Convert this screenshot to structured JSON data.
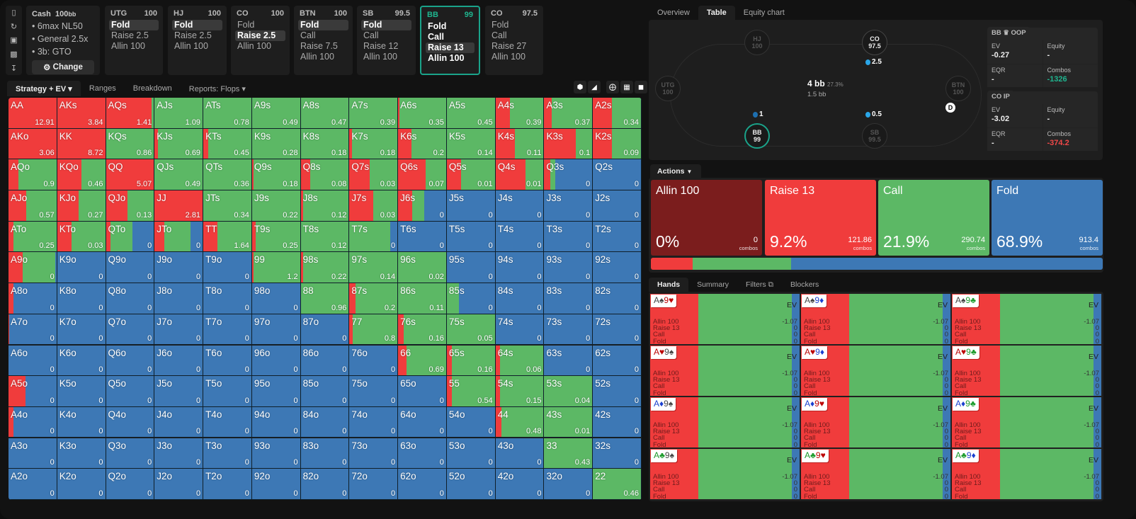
{
  "colors": {
    "allin": "#7b1d1d",
    "raise": "#f03c3c",
    "call": "#5cb865",
    "fold": "#3d78b5",
    "accent": "#1aa38a"
  },
  "sidebar_icons": [
    "bookmark-icon",
    "reset-icon",
    "save-icon",
    "gamepad-icon",
    "fit-height-icon"
  ],
  "info": {
    "title": "Cash",
    "stack": "100",
    "stack_unit": "bb",
    "items": [
      "6max NL50",
      "General 2.5x",
      "3b: GTO"
    ],
    "change_label": "Change"
  },
  "positions": [
    {
      "name": "UTG",
      "stack": "100",
      "actions": [
        "Fold",
        "Raise 2.5",
        "Allin 100"
      ],
      "selected": 0
    },
    {
      "name": "HJ",
      "stack": "100",
      "actions": [
        "Fold",
        "Raise 2.5",
        "Allin 100"
      ],
      "selected": 0
    },
    {
      "name": "CO",
      "stack": "100",
      "actions": [
        "Fold",
        "Raise 2.5",
        "Allin 100"
      ],
      "selected": 1
    },
    {
      "name": "BTN",
      "stack": "100",
      "actions": [
        "Fold",
        "Call",
        "Raise 7.5",
        "Allin 100"
      ],
      "selected": 0
    },
    {
      "name": "SB",
      "stack": "99.5",
      "actions": [
        "Fold",
        "Call",
        "Raise 12",
        "Allin 100"
      ],
      "selected": 0
    },
    {
      "name": "BB",
      "stack": "99",
      "actions": [
        "Fold",
        "Call",
        "Raise 13",
        "Allin 100"
      ],
      "selected": 2,
      "current": true
    },
    {
      "name": "CO",
      "stack": "97.5",
      "actions": [
        "Fold",
        "Call",
        "Raise 27",
        "Allin 100"
      ],
      "selected": -1
    }
  ],
  "left_tabs": [
    {
      "label": "Strategy + EV",
      "active": true,
      "dropdown": true
    },
    {
      "label": "Ranges"
    },
    {
      "label": "Breakdown"
    },
    {
      "label": "Reports: Flops",
      "dropdown": true
    }
  ],
  "view_tools": [
    "cube-icon",
    "contrast-icon",
    "crosshair-grid-icon",
    "grid-icon",
    "square-icon"
  ],
  "grid": [
    [
      [
        "AA",
        "12.91",
        1,
        0
      ],
      [
        "AKs",
        "3.84",
        1,
        0
      ],
      [
        "AQs",
        "1.41",
        0.95,
        0.05
      ],
      [
        "AJs",
        "1.09",
        0,
        1
      ],
      [
        "ATs",
        "0.78",
        0,
        1
      ],
      [
        "A9s",
        "0.49",
        0,
        1
      ],
      [
        "A8s",
        "0.47",
        0,
        1
      ],
      [
        "A7s",
        "0.39",
        0,
        1
      ],
      [
        "A6s",
        "0.35",
        0.03,
        0.97
      ],
      [
        "A5s",
        "0.45",
        0,
        1
      ],
      [
        "A4s",
        "0.39",
        0.3,
        0.7
      ],
      [
        "A3s",
        "0.37",
        0.15,
        0.85
      ],
      [
        "A2s",
        "0.34",
        0.4,
        0.6
      ]
    ],
    [
      [
        "AKo",
        "3.06",
        1,
        0
      ],
      [
        "KK",
        "8.72",
        1,
        0
      ],
      [
        "KQs",
        "0.86",
        0,
        1
      ],
      [
        "KJs",
        "0.69",
        0.07,
        0.93
      ],
      [
        "KTs",
        "0.45",
        0.1,
        0.9
      ],
      [
        "K9s",
        "0.28",
        0,
        1
      ],
      [
        "K8s",
        "0.18",
        0,
        1
      ],
      [
        "K7s",
        "0.18",
        0.05,
        0.95
      ],
      [
        "K6s",
        "0.2",
        0.28,
        0.72
      ],
      [
        "K5s",
        "0.14",
        0,
        1
      ],
      [
        "K4s",
        "0.11",
        0.4,
        0.6
      ],
      [
        "K3s",
        "0.1",
        0.65,
        0.35
      ],
      [
        "K2s",
        "0.09",
        0.4,
        0.6
      ]
    ],
    [
      [
        "AQo",
        "0.9",
        0.2,
        0.8
      ],
      [
        "KQo",
        "0.46",
        0.5,
        0.5
      ],
      [
        "QQ",
        "5.07",
        1,
        0
      ],
      [
        "QJs",
        "0.49",
        0,
        1
      ],
      [
        "QTs",
        "0.36",
        0,
        1
      ],
      [
        "Q9s",
        "0.18",
        0.03,
        0.97
      ],
      [
        "Q8s",
        "0.08",
        0.2,
        0.8
      ],
      [
        "Q7s",
        "0.03",
        0.42,
        0.58
      ],
      [
        "Q6s",
        "0.07",
        0.58,
        0.42
      ],
      [
        "Q5s",
        "0.01",
        0.3,
        0.7
      ],
      [
        "Q4s",
        "0.01",
        0.62,
        0.38
      ],
      [
        "Q3s",
        "0",
        0.13,
        0.1
      ],
      [
        "Q2s",
        "0",
        0,
        0
      ]
    ],
    [
      [
        "AJo",
        "0.57",
        0.37,
        0.63
      ],
      [
        "KJo",
        "0.27",
        0.45,
        0.55
      ],
      [
        "QJo",
        "0.13",
        0.45,
        0.55
      ],
      [
        "JJ",
        "2.81",
        1,
        0
      ],
      [
        "JTs",
        "0.34",
        0,
        1
      ],
      [
        "J9s",
        "0.22",
        0,
        1
      ],
      [
        "J8s",
        "0.12",
        0.05,
        0.95
      ],
      [
        "J7s",
        "0.03",
        0.5,
        0.5
      ],
      [
        "J6s",
        "0",
        0.3,
        0.25
      ],
      [
        "J5s",
        "0",
        0,
        0
      ],
      [
        "J4s",
        "0",
        0,
        0
      ],
      [
        "J3s",
        "0",
        0,
        0
      ],
      [
        "J2s",
        "0",
        0,
        0
      ]
    ],
    [
      [
        "ATo",
        "0.25",
        0.1,
        0.9
      ],
      [
        "KTo",
        "0.03",
        0.3,
        0.7
      ],
      [
        "QTo",
        "0",
        0.1,
        0.45
      ],
      [
        "JTo",
        "0",
        0.2,
        0.55
      ],
      [
        "TT",
        "1.64",
        0.3,
        0.7
      ],
      [
        "T9s",
        "0.25",
        0.08,
        0.92
      ],
      [
        "T8s",
        "0.12",
        0,
        1
      ],
      [
        "T7s",
        "0",
        0,
        0.85
      ],
      [
        "T6s",
        "0",
        0,
        0
      ],
      [
        "T5s",
        "0",
        0,
        0
      ],
      [
        "T4s",
        "0",
        0,
        0
      ],
      [
        "T3s",
        "0",
        0,
        0
      ],
      [
        "T2s",
        "0",
        0,
        0
      ]
    ],
    [
      [
        "A9o",
        "0",
        0.3,
        0.68
      ],
      [
        "K9o",
        "0",
        0,
        0
      ],
      [
        "Q9o",
        "0",
        0,
        0
      ],
      [
        "J9o",
        "0",
        0,
        0
      ],
      [
        "T9o",
        "0",
        0,
        0
      ],
      [
        "99",
        "1.2",
        0.03,
        0.97
      ],
      [
        "98s",
        "0.22",
        0.05,
        0.95
      ],
      [
        "97s",
        "0.14",
        0,
        1
      ],
      [
        "96s",
        "0.02",
        0,
        1
      ],
      [
        "95s",
        "0",
        0,
        0
      ],
      [
        "94s",
        "0",
        0,
        0
      ],
      [
        "93s",
        "0",
        0,
        0
      ],
      [
        "92s",
        "0",
        0,
        0
      ]
    ],
    [
      [
        "A8o",
        "0",
        0.1,
        0
      ],
      [
        "K8o",
        "0",
        0,
        0
      ],
      [
        "Q8o",
        "0",
        0,
        0
      ],
      [
        "J8o",
        "0",
        0,
        0
      ],
      [
        "T8o",
        "0",
        0,
        0
      ],
      [
        "98o",
        "0",
        0,
        0
      ],
      [
        "88",
        "0.96",
        0,
        1
      ],
      [
        "87s",
        "0.2",
        0.12,
        0.88
      ],
      [
        "86s",
        "0.11",
        0,
        1
      ],
      [
        "85s",
        "0",
        0,
        0.25
      ],
      [
        "84s",
        "0",
        0,
        0
      ],
      [
        "83s",
        "0",
        0,
        0
      ],
      [
        "82s",
        "0",
        0,
        0
      ]
    ],
    [
      [
        "A7o",
        "0",
        0.02,
        0
      ],
      [
        "K7o",
        "0",
        0,
        0
      ],
      [
        "Q7o",
        "0",
        0,
        0
      ],
      [
        "J7o",
        "0",
        0,
        0
      ],
      [
        "T7o",
        "0",
        0,
        0
      ],
      [
        "97o",
        "0",
        0,
        0
      ],
      [
        "87o",
        "0",
        0,
        0
      ],
      [
        "77",
        "0.8",
        0.07,
        0.93
      ],
      [
        "76s",
        "0.16",
        0.12,
        0.88
      ],
      [
        "75s",
        "0.05",
        0,
        1
      ],
      [
        "74s",
        "0",
        0,
        0
      ],
      [
        "73s",
        "0",
        0,
        0
      ],
      [
        "72s",
        "0",
        0,
        0
      ]
    ],
    [
      [
        "A6o",
        "0",
        0,
        0
      ],
      [
        "K6o",
        "0",
        0,
        0
      ],
      [
        "Q6o",
        "0",
        0,
        0
      ],
      [
        "J6o",
        "0",
        0,
        0
      ],
      [
        "T6o",
        "0",
        0,
        0
      ],
      [
        "96o",
        "0",
        0,
        0
      ],
      [
        "86o",
        "0",
        0,
        0
      ],
      [
        "76o",
        "0",
        0,
        0
      ],
      [
        "66",
        "0.69",
        0.17,
        0.83
      ],
      [
        "65s",
        "0.16",
        0.1,
        0.9
      ],
      [
        "64s",
        "0.06",
        0.1,
        0.9
      ],
      [
        "63s",
        "0",
        0,
        0
      ],
      [
        "62s",
        "0",
        0,
        0
      ]
    ],
    [
      [
        "A5o",
        "0",
        0.35,
        0
      ],
      [
        "K5o",
        "0",
        0,
        0
      ],
      [
        "Q5o",
        "0",
        0,
        0
      ],
      [
        "J5o",
        "0",
        0,
        0
      ],
      [
        "T5o",
        "0",
        0,
        0
      ],
      [
        "95o",
        "0",
        0,
        0
      ],
      [
        "85o",
        "0",
        0,
        0
      ],
      [
        "75o",
        "0",
        0,
        0
      ],
      [
        "65o",
        "0",
        0,
        0
      ],
      [
        "55",
        "0.54",
        0.1,
        0.9
      ],
      [
        "54s",
        "0.15",
        0.1,
        0.9
      ],
      [
        "53s",
        "0.04",
        0,
        1
      ],
      [
        "52s",
        "0",
        0,
        0
      ]
    ],
    [
      [
        "A4o",
        "0",
        0.1,
        0
      ],
      [
        "K4o",
        "0",
        0,
        0
      ],
      [
        "Q4o",
        "0",
        0,
        0
      ],
      [
        "J4o",
        "0",
        0,
        0
      ],
      [
        "T4o",
        "0",
        0,
        0
      ],
      [
        "94o",
        "0",
        0,
        0
      ],
      [
        "84o",
        "0",
        0,
        0
      ],
      [
        "74o",
        "0",
        0,
        0
      ],
      [
        "64o",
        "0",
        0,
        0
      ],
      [
        "54o",
        "0",
        0,
        0
      ],
      [
        "44",
        "0.48",
        0.12,
        0.88
      ],
      [
        "43s",
        "0.01",
        0,
        1
      ],
      [
        "42s",
        "0",
        0,
        0
      ]
    ],
    [
      [
        "A3o",
        "0",
        0,
        0
      ],
      [
        "K3o",
        "0",
        0,
        0
      ],
      [
        "Q3o",
        "0",
        0,
        0
      ],
      [
        "J3o",
        "0",
        0,
        0
      ],
      [
        "T3o",
        "0",
        0,
        0
      ],
      [
        "93o",
        "0",
        0,
        0
      ],
      [
        "83o",
        "0",
        0,
        0
      ],
      [
        "73o",
        "0",
        0,
        0
      ],
      [
        "63o",
        "0",
        0,
        0
      ],
      [
        "53o",
        "0",
        0,
        0
      ],
      [
        "43o",
        "0",
        0,
        0
      ],
      [
        "33",
        "0.43",
        0,
        1
      ],
      [
        "32s",
        "0",
        0,
        0
      ]
    ],
    [
      [
        "A2o",
        "0",
        0,
        0
      ],
      [
        "K2o",
        "0",
        0,
        0
      ],
      [
        "Q2o",
        "0",
        0,
        0
      ],
      [
        "J2o",
        "0",
        0,
        0
      ],
      [
        "T2o",
        "0",
        0,
        0
      ],
      [
        "92o",
        "0",
        0,
        0
      ],
      [
        "82o",
        "0",
        0,
        0
      ],
      [
        "72o",
        "0",
        0,
        0
      ],
      [
        "62o",
        "0",
        0,
        0
      ],
      [
        "52o",
        "0",
        0,
        0
      ],
      [
        "42o",
        "0",
        0,
        0
      ],
      [
        "32o",
        "0",
        0,
        0
      ],
      [
        "22",
        "0.46",
        0,
        1
      ]
    ]
  ],
  "right_tabs": [
    {
      "label": "Overview"
    },
    {
      "label": "Table",
      "active": true
    },
    {
      "label": "Equity chart"
    }
  ],
  "table": {
    "seats": {
      "HJ": "100",
      "CO": "97.5",
      "UTG": "100",
      "BTN": "100",
      "BB": "99",
      "SB": "99.5"
    },
    "bets": {
      "CO": "2.5",
      "BB": "1",
      "SB": "0.5"
    },
    "pot": "4 bb",
    "pot_pct": "27.3%",
    "pot_sub": "1.5 bb",
    "dealer": "D"
  },
  "stats": [
    {
      "player": "BB",
      "badge": "crown-icon",
      "side": "OOP",
      "ev_label": "EV",
      "ev": "-0.27",
      "equity_label": "Equity",
      "equity": "-",
      "eqr_label": "EQR",
      "eqr": "-",
      "combos_label": "Combos",
      "combos": "-1326",
      "combos_color": "#1fb58f"
    },
    {
      "player": "CO",
      "side": "IP",
      "ev_label": "EV",
      "ev": "-3.02",
      "equity_label": "Equity",
      "equity": "-",
      "eqr_label": "EQR",
      "eqr": "-",
      "combos_label": "Combos",
      "combos": "-374.2",
      "combos_color": "#f04848"
    }
  ],
  "actions_tab": "Actions",
  "actions": [
    {
      "name": "Allin 100",
      "pct": "0%",
      "combos": "0",
      "color": "allin",
      "freq": 0
    },
    {
      "name": "Raise 13",
      "pct": "9.2%",
      "combos": "121.86",
      "color": "raise",
      "freq": 9.2
    },
    {
      "name": "Call",
      "pct": "21.9%",
      "combos": "290.74",
      "color": "call",
      "freq": 21.9
    },
    {
      "name": "Fold",
      "pct": "68.9%",
      "combos": "913.4",
      "color": "fold",
      "freq": 68.9
    }
  ],
  "combos_word": "combos",
  "hand_tabs": [
    {
      "label": "Hands",
      "active": true
    },
    {
      "label": "Summary"
    },
    {
      "label": "Filters",
      "icon": "copy-icon"
    },
    {
      "label": "Blockers"
    }
  ],
  "hand_strategy": {
    "raise": 0.32,
    "call": 0.63,
    "fold": 0.05
  },
  "hands_ev_label": "EV",
  "hand_lines": [
    "Allin 100",
    "Raise 13",
    "Call",
    "Fold"
  ],
  "hand_values": [
    "-1.07",
    "0",
    "0",
    "0"
  ],
  "hands": [
    [
      [
        "A",
        "s"
      ],
      [
        "9",
        "h"
      ]
    ],
    [
      [
        "A",
        "s"
      ],
      [
        "9",
        "d"
      ]
    ],
    [
      [
        "A",
        "s"
      ],
      [
        "9",
        "c"
      ]
    ],
    [
      [
        "A",
        "h"
      ],
      [
        "9",
        "s"
      ]
    ],
    [
      [
        "A",
        "h"
      ],
      [
        "9",
        "d"
      ]
    ],
    [
      [
        "A",
        "h"
      ],
      [
        "9",
        "c"
      ]
    ],
    [
      [
        "A",
        "d"
      ],
      [
        "9",
        "s"
      ]
    ],
    [
      [
        "A",
        "d"
      ],
      [
        "9",
        "h"
      ]
    ],
    [
      [
        "A",
        "d"
      ],
      [
        "9",
        "c"
      ]
    ],
    [
      [
        "A",
        "c"
      ],
      [
        "9",
        "s"
      ]
    ],
    [
      [
        "A",
        "c"
      ],
      [
        "9",
        "h"
      ]
    ],
    [
      [
        "A",
        "c"
      ],
      [
        "9",
        "d"
      ]
    ]
  ]
}
